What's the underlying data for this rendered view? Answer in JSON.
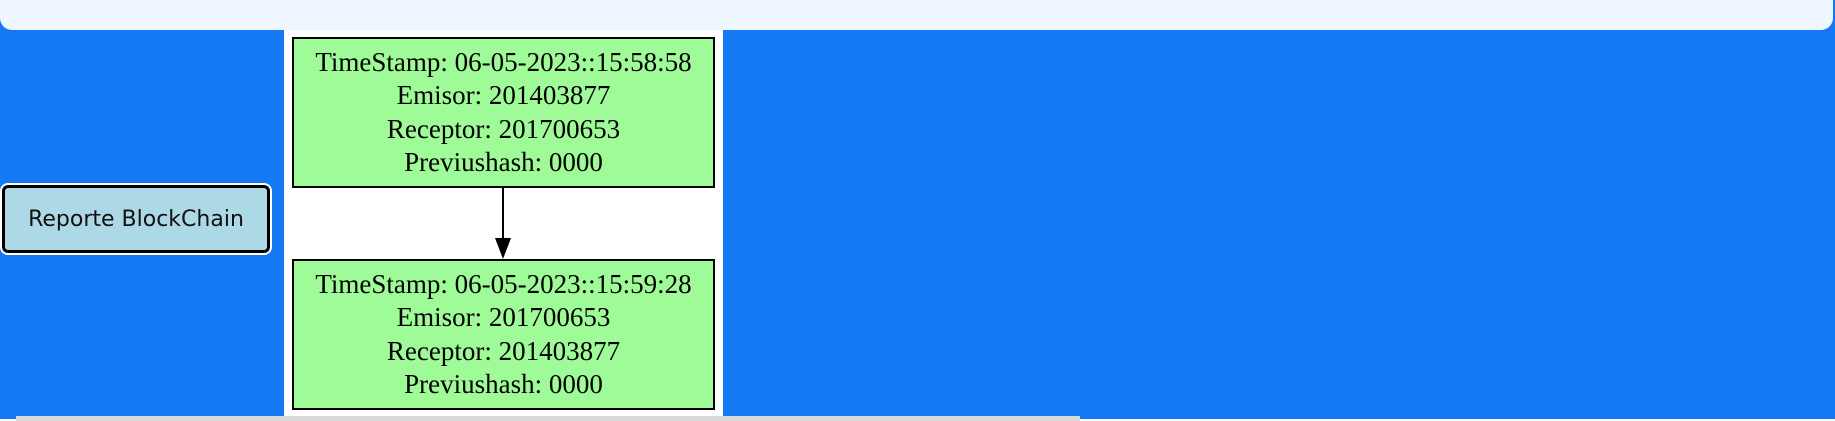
{
  "report_button": {
    "label": "Reporte BlockChain"
  },
  "blocks": [
    {
      "timestamp": "TimeStamp: 06-05-2023::15:58:58",
      "emisor": "Emisor: 201403877",
      "receptor": "Receptor: 201700653",
      "previushash": "Previushash: 0000"
    },
    {
      "timestamp": "TimeStamp: 06-05-2023::15:59:28",
      "emisor": "Emisor: 201700653",
      "receptor": "Receptor: 201403877",
      "previushash": "Previushash: 0000"
    }
  ],
  "colors": {
    "panel_background": "#1479f2",
    "top_bar": "#eef6ff",
    "button_background": "#add8e6",
    "node_fill": "#9ffa98"
  }
}
